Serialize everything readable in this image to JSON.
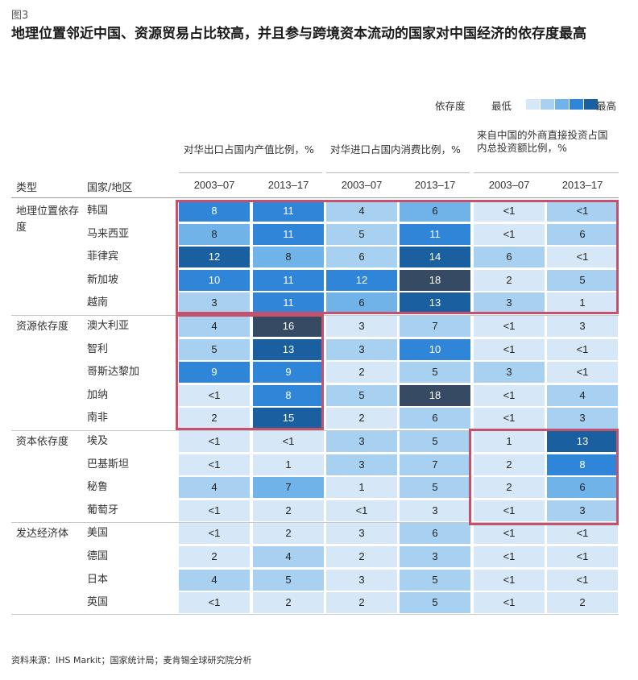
{
  "figure": {
    "label": "图3",
    "title": "地理位置邻近中国、资源贸易占比较高，并且参与跨境资本流动的国家对中国经济的依存度最高",
    "source": "资料来源：IHS Markit；国家统计局；麦肯锡全球研究院分析"
  },
  "legend": {
    "label": "依存度",
    "low": "最低",
    "high": "最高",
    "scale_colors": [
      "#d6e8f7",
      "#a8d0f0",
      "#6fb3e8",
      "#2f86d9",
      "#1a5fa0",
      "#364a63"
    ]
  },
  "colors": {
    "scale": [
      "#d6e8f7",
      "#a8d0f0",
      "#6fb3e8",
      "#2f86d9",
      "#1a5fa0",
      "#364a63"
    ],
    "highlight": "#c4526e"
  },
  "headers": {
    "type": "类型",
    "country": "国家/地区",
    "groups": [
      "对华出口占国内产值比例，%",
      "对华进口占国内消费比例，%",
      "来自中国的外商直接投资占国内总投资额比例，%"
    ],
    "years": [
      "2003–07",
      "2013–17",
      "2003–07",
      "2013–17",
      "2003–07",
      "2013–17"
    ]
  },
  "chart_data": {
    "type": "heatmap",
    "title": "地理位置邻近中国、资源贸易占比较高，并且参与跨境资本流动的国家对中国经济的依存度最高",
    "columns": [
      "对华出口占国内产值比例，% 2003–07",
      "对华出口占国内产值比例，% 2013–17",
      "对华进口占国内消费比例，% 2003–07",
      "对华进口占国内消费比例，% 2013–17",
      "来自中国的外商直接投资占国内总投资额比例，% 2003–07",
      "来自中国的外商直接投资占国内总投资额比例，% 2013–17"
    ],
    "groups": [
      {
        "type": "地理位置依存度",
        "rows": [
          {
            "country": "韩国",
            "values": [
              "8",
              "11",
              "4",
              "6",
              "<1",
              "<1"
            ],
            "levels": [
              3,
              3,
              1,
              2,
              0,
              1
            ]
          },
          {
            "country": "马来西亚",
            "values": [
              "8",
              "11",
              "5",
              "11",
              "<1",
              "6"
            ],
            "levels": [
              2,
              3,
              1,
              3,
              0,
              1
            ]
          },
          {
            "country": "菲律宾",
            "values": [
              "12",
              "8",
              "6",
              "14",
              "6",
              "<1"
            ],
            "levels": [
              4,
              2,
              1,
              4,
              1,
              0
            ]
          },
          {
            "country": "新加坡",
            "values": [
              "10",
              "11",
              "12",
              "18",
              "2",
              "5"
            ],
            "levels": [
              3,
              3,
              3,
              5,
              0,
              1
            ]
          },
          {
            "country": "越南",
            "values": [
              "3",
              "11",
              "6",
              "13",
              "3",
              "1"
            ],
            "levels": [
              1,
              3,
              2,
              4,
              1,
              0
            ]
          }
        ]
      },
      {
        "type": "资源依存度",
        "rows": [
          {
            "country": "澳大利亚",
            "values": [
              "4",
              "16",
              "3",
              "7",
              "<1",
              "3"
            ],
            "levels": [
              1,
              5,
              0,
              1,
              0,
              0
            ]
          },
          {
            "country": "智利",
            "values": [
              "5",
              "13",
              "3",
              "10",
              "<1",
              "<1"
            ],
            "levels": [
              1,
              4,
              1,
              3,
              0,
              0
            ]
          },
          {
            "country": "哥斯达黎加",
            "values": [
              "9",
              "9",
              "2",
              "5",
              "3",
              "<1"
            ],
            "levels": [
              3,
              3,
              0,
              1,
              1,
              0
            ]
          },
          {
            "country": "加纳",
            "values": [
              "<1",
              "8",
              "5",
              "18",
              "<1",
              "4"
            ],
            "levels": [
              0,
              3,
              1,
              5,
              0,
              1
            ]
          },
          {
            "country": "南非",
            "values": [
              "2",
              "15",
              "2",
              "6",
              "<1",
              "3"
            ],
            "levels": [
              0,
              4,
              0,
              1,
              0,
              1
            ]
          }
        ]
      },
      {
        "type": "资本依存度",
        "rows": [
          {
            "country": "埃及",
            "values": [
              "<1",
              "<1",
              "3",
              "5",
              "1",
              "13"
            ],
            "levels": [
              0,
              0,
              1,
              1,
              0,
              4
            ]
          },
          {
            "country": "巴基斯坦",
            "values": [
              "<1",
              "1",
              "3",
              "7",
              "2",
              "8"
            ],
            "levels": [
              0,
              0,
              1,
              1,
              0,
              3
            ]
          },
          {
            "country": "秘鲁",
            "values": [
              "4",
              "7",
              "1",
              "5",
              "2",
              "6"
            ],
            "levels": [
              1,
              2,
              0,
              1,
              0,
              2
            ]
          },
          {
            "country": "葡萄牙",
            "values": [
              "<1",
              "2",
              "<1",
              "3",
              "<1",
              "3"
            ],
            "levels": [
              0,
              0,
              0,
              0,
              0,
              1
            ]
          }
        ]
      },
      {
        "type": "发达经济体",
        "rows": [
          {
            "country": "美国",
            "values": [
              "<1",
              "2",
              "3",
              "6",
              "<1",
              "<1"
            ],
            "levels": [
              0,
              0,
              0,
              1,
              0,
              0
            ]
          },
          {
            "country": "德国",
            "values": [
              "2",
              "4",
              "2",
              "3",
              "<1",
              "<1"
            ],
            "levels": [
              0,
              1,
              0,
              1,
              0,
              0
            ]
          },
          {
            "country": "日本",
            "values": [
              "4",
              "5",
              "3",
              "5",
              "<1",
              "<1"
            ],
            "levels": [
              1,
              1,
              0,
              1,
              0,
              0
            ]
          },
          {
            "country": "英国",
            "values": [
              "<1",
              "2",
              "2",
              "5",
              "<1",
              "2"
            ],
            "levels": [
              0,
              0,
              0,
              1,
              0,
              0
            ]
          }
        ]
      }
    ]
  }
}
